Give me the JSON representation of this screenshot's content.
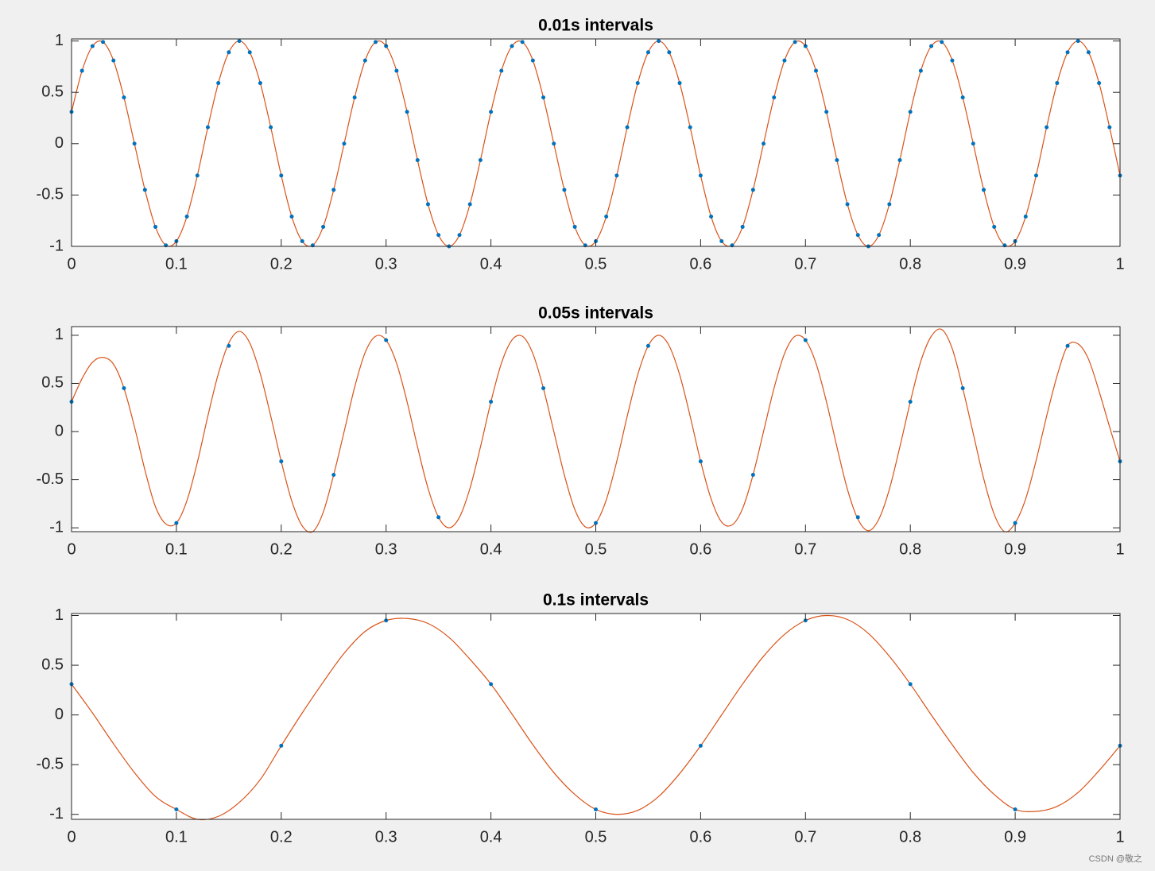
{
  "chart_data": [
    {
      "type": "line",
      "title": "0.01s intervals",
      "xlim": [
        0,
        1
      ],
      "ylim": [
        -1,
        1.02
      ],
      "xticks": [
        0,
        0.1,
        0.2,
        0.3,
        0.4,
        0.5,
        0.6,
        0.7,
        0.8,
        0.9,
        1
      ],
      "yticks": [
        -1,
        -0.5,
        0,
        0.5,
        1
      ],
      "series": [
        {
          "mode": "lines",
          "color": "#d95319",
          "x": [
            0,
            0.01,
            0.02,
            0.03,
            0.04,
            0.05,
            0.06,
            0.07,
            0.08,
            0.09,
            0.1,
            0.11,
            0.12,
            0.13,
            0.14,
            0.15,
            0.16,
            0.17,
            0.18,
            0.19,
            0.2,
            0.21,
            0.22,
            0.23,
            0.24,
            0.25,
            0.26,
            0.27,
            0.28,
            0.29,
            0.3,
            0.31,
            0.32,
            0.33,
            0.34,
            0.35,
            0.36,
            0.37,
            0.38,
            0.39,
            0.4,
            0.41,
            0.42,
            0.43,
            0.44,
            0.45,
            0.46,
            0.47,
            0.48,
            0.49,
            0.5,
            0.51,
            0.52,
            0.53,
            0.54,
            0.55,
            0.56,
            0.57,
            0.58,
            0.59,
            0.6,
            0.61,
            0.62,
            0.63,
            0.64,
            0.65,
            0.66,
            0.67,
            0.68,
            0.69,
            0.7,
            0.71,
            0.72,
            0.73,
            0.74,
            0.75,
            0.76,
            0.77,
            0.78,
            0.79,
            0.8,
            0.81,
            0.82,
            0.83,
            0.84,
            0.85,
            0.86,
            0.87,
            0.88,
            0.89,
            0.9,
            0.91,
            0.92,
            0.93,
            0.94,
            0.95,
            0.96,
            0.97,
            0.98,
            0.99,
            1
          ],
          "values": [
            0.31,
            0.71,
            0.95,
            0.99,
            0.81,
            0.45,
            0,
            -0.45,
            -0.81,
            -0.99,
            -0.95,
            -0.71,
            -0.31,
            0.16,
            0.59,
            0.89,
            1,
            0.89,
            0.59,
            0.16,
            -0.31,
            -0.71,
            -0.95,
            -0.99,
            -0.81,
            -0.45,
            0,
            0.45,
            0.81,
            0.99,
            0.95,
            0.71,
            0.31,
            -0.16,
            -0.59,
            -0.89,
            -1,
            -0.89,
            -0.59,
            -0.16,
            0.31,
            0.71,
            0.95,
            0.99,
            0.81,
            0.45,
            0,
            -0.45,
            -0.81,
            -0.99,
            -0.95,
            -0.71,
            -0.31,
            0.16,
            0.59,
            0.89,
            1,
            0.89,
            0.59,
            0.16,
            -0.31,
            -0.71,
            -0.95,
            -0.99,
            -0.81,
            -0.45,
            0,
            0.45,
            0.81,
            0.99,
            0.95,
            0.71,
            0.31,
            -0.16,
            -0.59,
            -0.89,
            -1,
            -0.89,
            -0.59,
            -0.16,
            0.31,
            0.71,
            0.95,
            0.99,
            0.81,
            0.45,
            0,
            -0.45,
            -0.81,
            -0.99,
            -0.95,
            -0.71,
            -0.31,
            0.16,
            0.59,
            0.89,
            1,
            0.89,
            0.59,
            0.16,
            -0.31
          ]
        },
        {
          "mode": "markers",
          "color": "#0072bd",
          "x": [
            0,
            0.01,
            0.02,
            0.03,
            0.04,
            0.05,
            0.06,
            0.07,
            0.08,
            0.09,
            0.1,
            0.11,
            0.12,
            0.13,
            0.14,
            0.15,
            0.16,
            0.17,
            0.18,
            0.19,
            0.2,
            0.21,
            0.22,
            0.23,
            0.24,
            0.25,
            0.26,
            0.27,
            0.28,
            0.29,
            0.3,
            0.31,
            0.32,
            0.33,
            0.34,
            0.35,
            0.36,
            0.37,
            0.38,
            0.39,
            0.4,
            0.41,
            0.42,
            0.43,
            0.44,
            0.45,
            0.46,
            0.47,
            0.48,
            0.49,
            0.5,
            0.51,
            0.52,
            0.53,
            0.54,
            0.55,
            0.56,
            0.57,
            0.58,
            0.59,
            0.6,
            0.61,
            0.62,
            0.63,
            0.64,
            0.65,
            0.66,
            0.67,
            0.68,
            0.69,
            0.7,
            0.71,
            0.72,
            0.73,
            0.74,
            0.75,
            0.76,
            0.77,
            0.78,
            0.79,
            0.8,
            0.81,
            0.82,
            0.83,
            0.84,
            0.85,
            0.86,
            0.87,
            0.88,
            0.89,
            0.9,
            0.91,
            0.92,
            0.93,
            0.94,
            0.95,
            0.96,
            0.97,
            0.98,
            0.99,
            1
          ],
          "values": [
            0.31,
            0.71,
            0.95,
            0.99,
            0.81,
            0.45,
            0,
            -0.45,
            -0.81,
            -0.99,
            -0.95,
            -0.71,
            -0.31,
            0.16,
            0.59,
            0.89,
            1,
            0.89,
            0.59,
            0.16,
            -0.31,
            -0.71,
            -0.95,
            -0.99,
            -0.81,
            -0.45,
            0,
            0.45,
            0.81,
            0.99,
            0.95,
            0.71,
            0.31,
            -0.16,
            -0.59,
            -0.89,
            -1,
            -0.89,
            -0.59,
            -0.16,
            0.31,
            0.71,
            0.95,
            0.99,
            0.81,
            0.45,
            0,
            -0.45,
            -0.81,
            -0.99,
            -0.95,
            -0.71,
            -0.31,
            0.16,
            0.59,
            0.89,
            1,
            0.89,
            0.59,
            0.16,
            -0.31,
            -0.71,
            -0.95,
            -0.99,
            -0.81,
            -0.45,
            0,
            0.45,
            0.81,
            0.99,
            0.95,
            0.71,
            0.31,
            -0.16,
            -0.59,
            -0.89,
            -1,
            -0.89,
            -0.59,
            -0.16,
            0.31,
            0.71,
            0.95,
            0.99,
            0.81,
            0.45,
            0,
            -0.45,
            -0.81,
            -0.99,
            -0.95,
            -0.71,
            -0.31,
            0.16,
            0.59,
            0.89,
            1,
            0.89,
            0.59,
            0.16,
            -0.31
          ]
        }
      ]
    },
    {
      "type": "line",
      "title": "0.05s intervals",
      "xlim": [
        0,
        1
      ],
      "ylim": [
        -1.04,
        1.09
      ],
      "xticks": [
        0,
        0.1,
        0.2,
        0.3,
        0.4,
        0.5,
        0.6,
        0.7,
        0.8,
        0.9,
        1
      ],
      "yticks": [
        -1,
        -0.5,
        0,
        0.5,
        1
      ],
      "series": [
        {
          "mode": "lines",
          "color": "#d95319",
          "x": [
            0,
            0.01,
            0.02,
            0.03,
            0.04,
            0.05,
            0.06,
            0.07,
            0.08,
            0.09,
            0.1,
            0.11,
            0.12,
            0.13,
            0.14,
            0.15,
            0.16,
            0.17,
            0.18,
            0.19,
            0.2,
            0.21,
            0.22,
            0.23,
            0.24,
            0.25,
            0.26,
            0.27,
            0.28,
            0.29,
            0.3,
            0.31,
            0.32,
            0.33,
            0.34,
            0.35,
            0.36,
            0.37,
            0.38,
            0.39,
            0.4,
            0.41,
            0.42,
            0.43,
            0.44,
            0.45,
            0.46,
            0.47,
            0.48,
            0.49,
            0.5,
            0.51,
            0.52,
            0.53,
            0.54,
            0.55,
            0.56,
            0.57,
            0.58,
            0.59,
            0.6,
            0.61,
            0.62,
            0.63,
            0.64,
            0.65,
            0.66,
            0.67,
            0.68,
            0.69,
            0.7,
            0.71,
            0.72,
            0.73,
            0.74,
            0.75,
            0.76,
            0.77,
            0.78,
            0.79,
            0.8,
            0.81,
            0.82,
            0.83,
            0.84,
            0.85,
            0.86,
            0.87,
            0.88,
            0.89,
            0.9,
            0.91,
            0.92,
            0.93,
            0.94,
            0.95,
            0.96,
            0.97,
            0.98,
            0.99,
            1
          ],
          "values": [
            0.31,
            0.55,
            0.72,
            0.77,
            0.7,
            0.45,
            0.05,
            -0.4,
            -0.78,
            -0.96,
            -0.95,
            -0.72,
            -0.32,
            0.16,
            0.6,
            0.92,
            1.04,
            0.92,
            0.6,
            0.16,
            -0.31,
            -0.72,
            -0.98,
            -1.04,
            -0.84,
            -0.45,
            0,
            0.46,
            0.82,
            0.99,
            0.95,
            0.71,
            0.31,
            -0.16,
            -0.59,
            -0.89,
            -1,
            -0.89,
            -0.59,
            -0.16,
            0.31,
            0.71,
            0.95,
            0.99,
            0.81,
            0.45,
            0,
            -0.45,
            -0.81,
            -0.99,
            -0.95,
            -0.71,
            -0.31,
            0.16,
            0.59,
            0.89,
            1,
            0.89,
            0.59,
            0.16,
            -0.31,
            -0.7,
            -0.94,
            -0.97,
            -0.8,
            -0.45,
            0,
            0.45,
            0.81,
            0.99,
            0.95,
            0.71,
            0.31,
            -0.16,
            -0.6,
            -0.91,
            -1.03,
            -0.91,
            -0.6,
            -0.16,
            0.31,
            0.73,
            0.99,
            1.06,
            0.86,
            0.45,
            -0.02,
            -0.49,
            -0.86,
            -1.04,
            -0.95,
            -0.7,
            -0.3,
            0.16,
            0.58,
            0.89,
            0.91,
            0.75,
            0.42,
            0.05,
            -0.31
          ]
        },
        {
          "mode": "markers",
          "color": "#0072bd",
          "x": [
            0,
            0.05,
            0.1,
            0.15,
            0.2,
            0.25,
            0.3,
            0.35,
            0.4,
            0.45,
            0.5,
            0.55,
            0.6,
            0.65,
            0.7,
            0.75,
            0.8,
            0.85,
            0.9,
            0.95,
            1
          ],
          "values": [
            0.31,
            0.45,
            -0.95,
            0.89,
            -0.31,
            -0.45,
            0.95,
            -0.89,
            0.31,
            0.45,
            -0.95,
            0.89,
            -0.31,
            -0.45,
            0.95,
            -0.89,
            0.31,
            0.45,
            -0.95,
            0.89,
            -0.31
          ]
        }
      ]
    },
    {
      "type": "line",
      "title": "0.1s intervals",
      "xlim": [
        0,
        1
      ],
      "ylim": [
        -1.05,
        1.02
      ],
      "xticks": [
        0,
        0.1,
        0.2,
        0.3,
        0.4,
        0.5,
        0.6,
        0.7,
        0.8,
        0.9,
        1
      ],
      "yticks": [
        -1,
        -0.5,
        0,
        0.5,
        1
      ],
      "series": [
        {
          "mode": "lines",
          "color": "#d95319",
          "x": [
            0,
            0.02,
            0.04,
            0.06,
            0.08,
            0.1,
            0.12,
            0.14,
            0.16,
            0.18,
            0.2,
            0.22,
            0.24,
            0.26,
            0.28,
            0.3,
            0.32,
            0.34,
            0.36,
            0.38,
            0.4,
            0.42,
            0.44,
            0.46,
            0.48,
            0.5,
            0.52,
            0.54,
            0.56,
            0.58,
            0.6,
            0.62,
            0.64,
            0.66,
            0.68,
            0.7,
            0.72,
            0.74,
            0.76,
            0.78,
            0.8,
            0.82,
            0.84,
            0.86,
            0.88,
            0.9,
            0.92,
            0.94,
            0.96,
            0.98,
            1
          ],
          "values": [
            0.31,
            0.02,
            -0.29,
            -0.58,
            -0.82,
            -0.95,
            -1.05,
            -1.02,
            -0.88,
            -0.65,
            -0.31,
            0.02,
            0.33,
            0.62,
            0.84,
            0.95,
            0.97,
            0.92,
            0.78,
            0.56,
            0.31,
            0.01,
            -0.3,
            -0.58,
            -0.8,
            -0.95,
            -1,
            -0.96,
            -0.82,
            -0.59,
            -0.31,
            0,
            0.31,
            0.59,
            0.81,
            0.95,
            1,
            0.96,
            0.82,
            0.59,
            0.31,
            0,
            -0.3,
            -0.58,
            -0.8,
            -0.95,
            -0.97,
            -0.92,
            -0.78,
            -0.56,
            -0.31
          ]
        },
        {
          "mode": "markers",
          "color": "#0072bd",
          "x": [
            0,
            0.1,
            0.2,
            0.3,
            0.4,
            0.5,
            0.6,
            0.7,
            0.8,
            0.9,
            1
          ],
          "values": [
            0.31,
            -0.95,
            -0.31,
            0.95,
            0.31,
            -0.95,
            -0.31,
            0.95,
            0.31,
            -0.95,
            -0.31
          ]
        }
      ]
    }
  ],
  "watermark": "CSDN @敬之"
}
